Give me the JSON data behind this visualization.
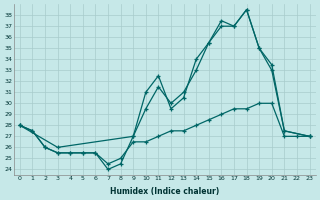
{
  "xlabel": "Humidex (Indice chaleur)",
  "background_color": "#c6e8e8",
  "grid_color": "#a8cccc",
  "line_color": "#006666",
  "xlim": [
    -0.5,
    23.5
  ],
  "ylim": [
    23.5,
    39
  ],
  "yticks": [
    24,
    25,
    26,
    27,
    28,
    29,
    30,
    31,
    32,
    33,
    34,
    35,
    36,
    37,
    38
  ],
  "xticks": [
    0,
    1,
    2,
    3,
    4,
    5,
    6,
    7,
    8,
    9,
    10,
    11,
    12,
    13,
    14,
    15,
    16,
    17,
    18,
    19,
    20,
    21,
    22,
    23
  ],
  "line1_x": [
    0,
    1,
    2,
    3,
    4,
    5,
    6,
    7,
    8,
    9,
    10,
    11,
    12,
    13,
    14,
    15,
    16,
    17,
    18,
    19,
    20,
    21,
    23
  ],
  "line1_y": [
    28,
    27.5,
    26,
    25.5,
    25.5,
    25.5,
    25.5,
    24,
    24.5,
    27,
    31,
    32.5,
    29.5,
    30.5,
    34,
    35.5,
    37.5,
    37,
    38.5,
    35,
    33,
    27.5,
    27
  ],
  "line2_x": [
    0,
    3,
    9,
    10,
    11,
    12,
    13,
    14,
    15,
    16,
    17,
    18,
    19,
    20,
    21,
    23
  ],
  "line2_y": [
    28,
    26,
    27,
    29.5,
    31.5,
    30,
    31,
    33,
    35.5,
    37,
    37,
    38.5,
    35,
    33.5,
    27.5,
    27
  ],
  "line3_x": [
    0,
    1,
    2,
    3,
    4,
    5,
    6,
    7,
    8,
    9,
    10,
    11,
    12,
    13,
    14,
    15,
    16,
    17,
    18,
    19,
    20,
    21,
    22,
    23
  ],
  "line3_y": [
    28,
    27.5,
    26,
    25.5,
    25.5,
    25.5,
    25.5,
    24.5,
    25,
    26.5,
    26.5,
    27,
    27.5,
    27.5,
    28,
    28.5,
    29,
    29.5,
    29.5,
    30,
    30,
    27,
    27,
    27
  ]
}
